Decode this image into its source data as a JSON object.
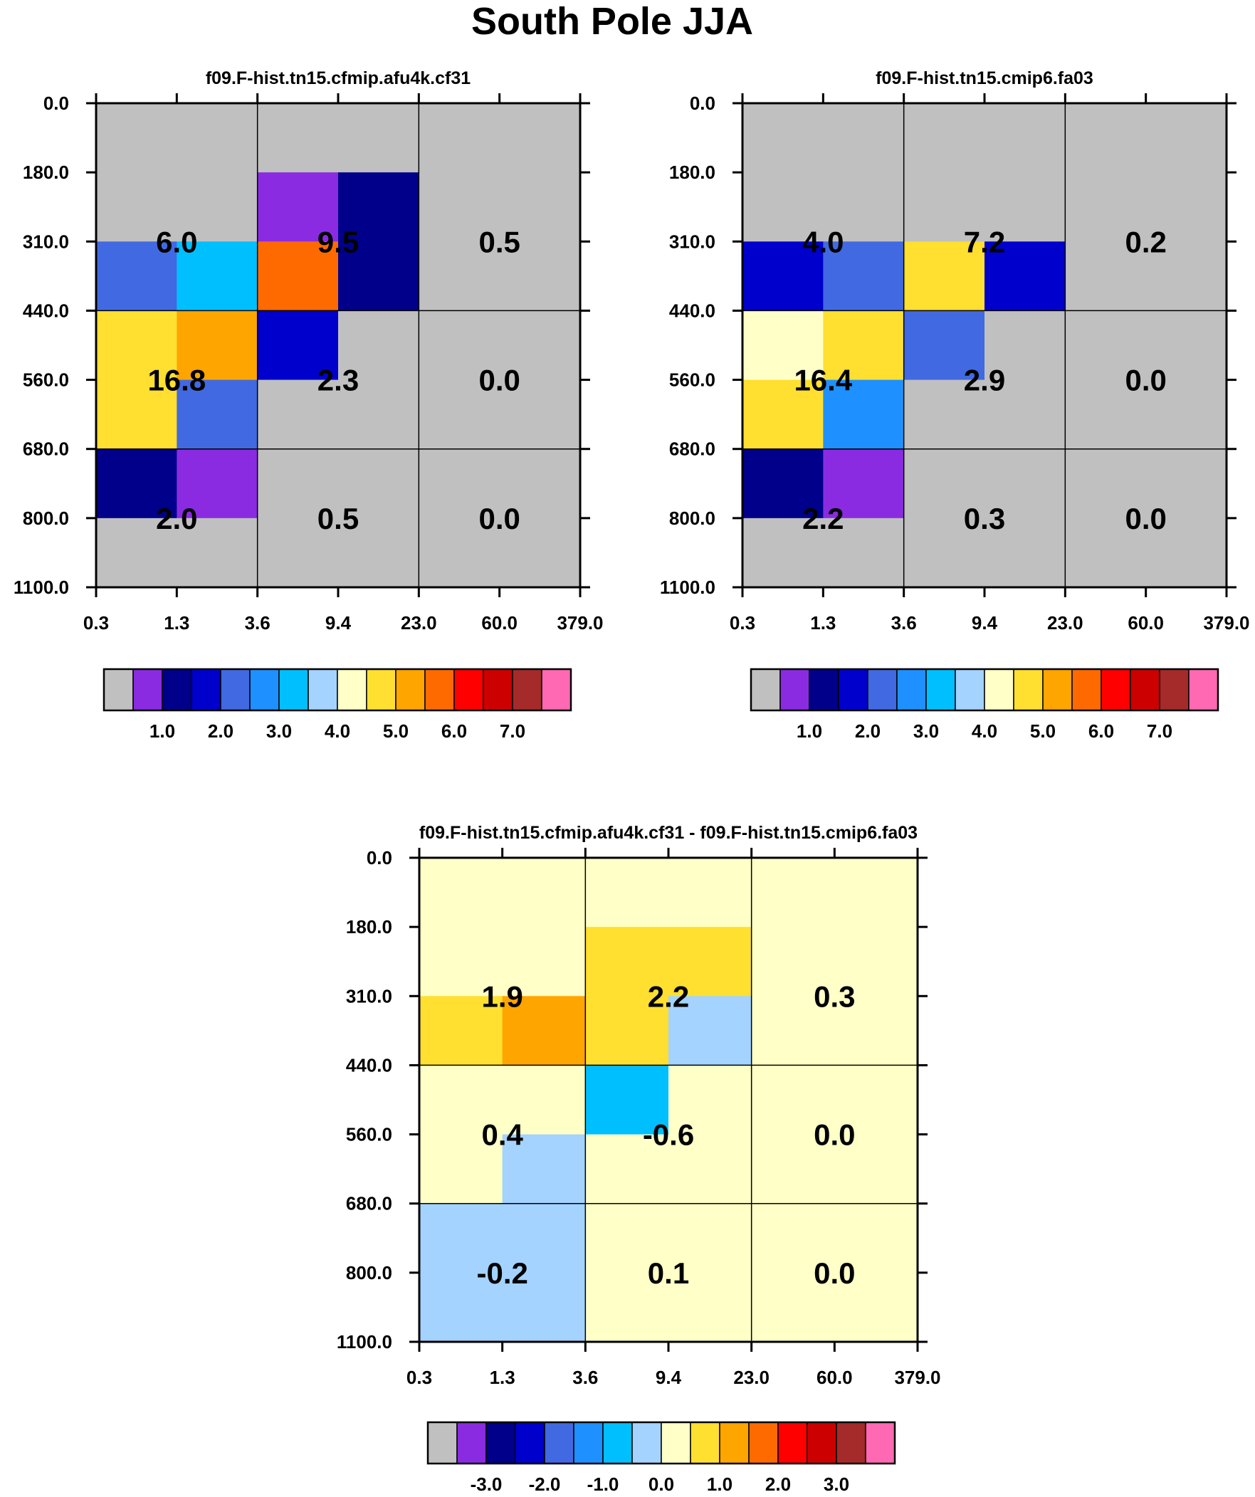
{
  "figure": {
    "title": "South Pole JJA"
  },
  "chart_data": [
    {
      "type": "heatmap",
      "title": "f09.F-hist.tn15.cfmip.afu4k.cf31",
      "x_tick_labels": [
        "0.3",
        "1.3",
        "3.6",
        "9.4",
        "23.0",
        "60.0",
        "379.0"
      ],
      "y_tick_labels": [
        "0.0",
        "180.0",
        "310.0",
        "440.0",
        "560.0",
        "680.0",
        "800.0",
        "1100.0"
      ],
      "cell_color_index": [
        [
          0,
          0,
          0,
          0,
          0,
          0
        ],
        [
          0,
          0,
          1,
          2,
          0,
          0
        ],
        [
          4,
          6,
          11,
          2,
          0,
          0
        ],
        [
          9,
          10,
          3,
          0,
          0,
          0
        ],
        [
          9,
          4,
          0,
          0,
          0,
          0
        ],
        [
          2,
          1,
          0,
          0,
          0,
          0
        ],
        [
          0,
          0,
          0,
          0,
          0,
          0
        ]
      ],
      "group_values": [
        [
          "6.0",
          "9.5",
          "0.5"
        ],
        [
          "16.8",
          "2.3",
          "0.0"
        ],
        [
          "2.0",
          "0.5",
          "0.0"
        ]
      ],
      "colorbar_labels": [
        "1.0",
        "2.0",
        "3.0",
        "4.0",
        "5.0",
        "6.0",
        "7.0"
      ]
    },
    {
      "type": "heatmap",
      "title": "f09.F-hist.tn15.cmip6.fa03",
      "x_tick_labels": [
        "0.3",
        "1.3",
        "3.6",
        "9.4",
        "23.0",
        "60.0",
        "379.0"
      ],
      "y_tick_labels": [
        "0.0",
        "180.0",
        "310.0",
        "440.0",
        "560.0",
        "680.0",
        "800.0",
        "1100.0"
      ],
      "cell_color_index": [
        [
          0,
          0,
          0,
          0,
          0,
          0
        ],
        [
          0,
          0,
          0,
          0,
          0,
          0
        ],
        [
          3,
          4,
          9,
          3,
          0,
          0
        ],
        [
          8,
          9,
          4,
          0,
          0,
          0
        ],
        [
          9,
          5,
          0,
          0,
          0,
          0
        ],
        [
          2,
          1,
          0,
          0,
          0,
          0
        ],
        [
          0,
          0,
          0,
          0,
          0,
          0
        ]
      ],
      "group_values": [
        [
          "4.0",
          "7.2",
          "0.2"
        ],
        [
          "16.4",
          "2.9",
          "0.0"
        ],
        [
          "2.2",
          "0.3",
          "0.0"
        ]
      ],
      "colorbar_labels": [
        "1.0",
        "2.0",
        "3.0",
        "4.0",
        "5.0",
        "6.0",
        "7.0"
      ]
    },
    {
      "type": "heatmap",
      "title": "f09.F-hist.tn15.cfmip.afu4k.cf31 - f09.F-hist.tn15.cmip6.fa03",
      "x_tick_labels": [
        "0.3",
        "1.3",
        "3.6",
        "9.4",
        "23.0",
        "60.0",
        "379.0"
      ],
      "y_tick_labels": [
        "0.0",
        "180.0",
        "310.0",
        "440.0",
        "560.0",
        "680.0",
        "800.0",
        "1100.0"
      ],
      "cell_color_index": [
        [
          8,
          8,
          8,
          8,
          8,
          8
        ],
        [
          8,
          8,
          9,
          9,
          8,
          8
        ],
        [
          9,
          10,
          9,
          7,
          8,
          8
        ],
        [
          8,
          8,
          6,
          8,
          8,
          8
        ],
        [
          8,
          7,
          8,
          8,
          8,
          8
        ],
        [
          7,
          7,
          8,
          8,
          8,
          8
        ],
        [
          7,
          7,
          8,
          8,
          8,
          8
        ]
      ],
      "group_values": [
        [
          "1.9",
          "2.2",
          "0.3"
        ],
        [
          "0.4",
          "-0.6",
          "0.0"
        ],
        [
          "-0.2",
          "0.1",
          "0.0"
        ]
      ],
      "colorbar_labels": [
        "-3.0",
        "-2.0",
        "-1.0",
        "0.0",
        "1.0",
        "2.0",
        "3.0"
      ]
    }
  ],
  "palette": [
    "#c0c0c0",
    "#8a2be2",
    "#00008b",
    "#0000cd",
    "#4169e1",
    "#1e90ff",
    "#00bfff",
    "#a4d3ff",
    "#ffffc8",
    "#ffdf30",
    "#ffa500",
    "#ff6a00",
    "#ff0000",
    "#cd0000",
    "#a52a2a",
    "#ff69b4"
  ]
}
